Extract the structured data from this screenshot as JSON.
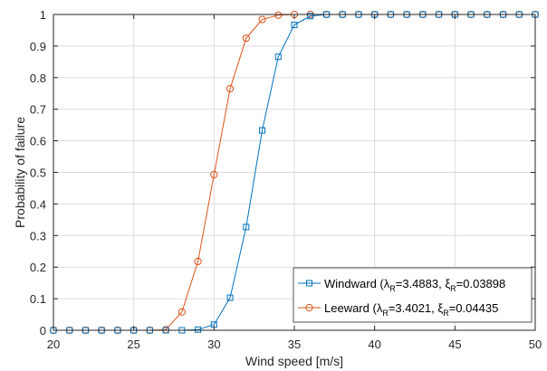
{
  "chart_data": {
    "type": "line",
    "xlabel": "Wind speed [m/s]",
    "ylabel": "Probability of failure",
    "xlim": [
      20,
      50
    ],
    "ylim": [
      0,
      1
    ],
    "x_ticks": [
      20,
      25,
      30,
      35,
      40,
      45,
      50
    ],
    "y_ticks": [
      0,
      0.1,
      0.2,
      0.3,
      0.4,
      0.5,
      0.6,
      0.7,
      0.8,
      0.9,
      1
    ],
    "grid": true,
    "legend_position": "bottom-right",
    "x": [
      20,
      21,
      22,
      23,
      24,
      25,
      26,
      27,
      28,
      29,
      30,
      31,
      32,
      33,
      34,
      35,
      36,
      37,
      38,
      39,
      40,
      41,
      42,
      43,
      44,
      45,
      46,
      47,
      48,
      49,
      50
    ],
    "series": [
      {
        "name": "Windward",
        "lambda_value": "3.4883",
        "xi_value": "0.03898",
        "color": "#0072BD",
        "marker": "square",
        "values": [
          0,
          0,
          0,
          0,
          0,
          0,
          0,
          0,
          0,
          0.002,
          0.018,
          0.103,
          0.327,
          0.633,
          0.866,
          0.967,
          0.995,
          1,
          1,
          1,
          1,
          1,
          1,
          1,
          1,
          1,
          1,
          1,
          1,
          1,
          1
        ]
      },
      {
        "name": "Leeward",
        "lambda_value": "3.4021",
        "xi_value": "0.04435",
        "color": "#D95319",
        "marker": "circle",
        "values": [
          0,
          0,
          0,
          0,
          0,
          0,
          0,
          0.002,
          0.058,
          0.218,
          0.493,
          0.765,
          0.925,
          0.984,
          0.998,
          1,
          1,
          1,
          1,
          1,
          1,
          1,
          1,
          1,
          1,
          1,
          1,
          1,
          1,
          1,
          1
        ]
      }
    ]
  }
}
